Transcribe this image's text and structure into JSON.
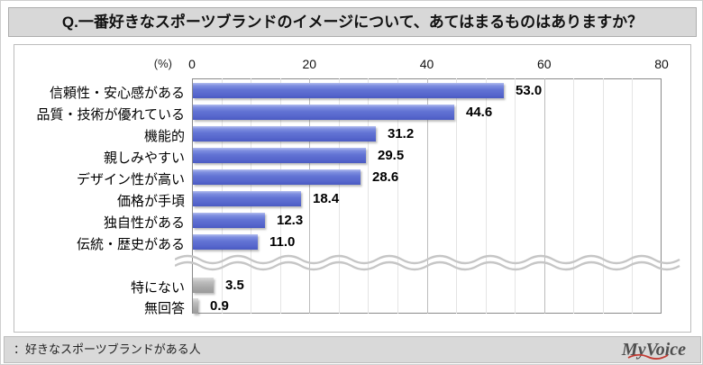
{
  "title": "Q.一番好きなスポーツブランドのイメージについて、あてはまるものはありますか？",
  "footer": {
    "note": "：好きなスポーツブランドがある人",
    "logo_text": "MyVoice"
  },
  "chart_data": {
    "type": "bar",
    "orientation": "horizontal",
    "unit_label": "(%)",
    "xlim": [
      0,
      80
    ],
    "axis_ticks": [
      0,
      20,
      40,
      60,
      80
    ],
    "grid_minor_step": 5,
    "grid_major_step": 20,
    "categories": [
      "信頼性・安心感がある",
      "品質・技術が優れている",
      "機能的",
      "親しみやすい",
      "デザイン性が高い",
      "価格が手頃",
      "独自性がある",
      "伝統・歴史がある",
      "特にない",
      "無回答"
    ],
    "values": [
      53.0,
      44.6,
      31.2,
      29.5,
      28.6,
      18.4,
      12.3,
      11.0,
      3.5,
      0.9
    ],
    "value_labels": [
      "53.0",
      "44.6",
      "31.2",
      "29.5",
      "28.6",
      "18.4",
      "12.3",
      "11.0",
      "3.5",
      "0.9"
    ],
    "secondary_group_start_index": 8,
    "has_axis_break_before_secondary_group": true,
    "bar_color_main": "#5d6ed1",
    "bar_color_secondary": "#a8a8a8",
    "legend": null,
    "grid": true
  }
}
